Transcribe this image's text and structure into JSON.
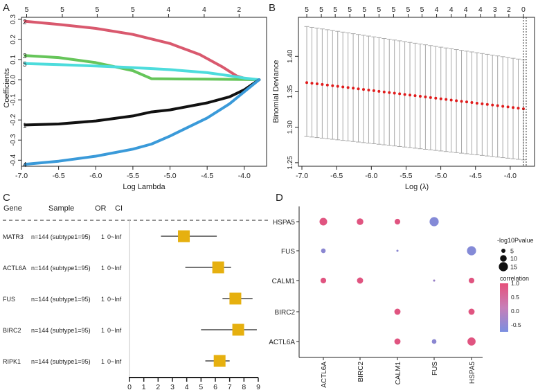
{
  "colors": {
    "red": "#d9596e",
    "green": "#66c55a",
    "cyan": "#4ddcdc",
    "black": "#111111",
    "blue": "#3a9ad9",
    "point_red": "#e01b1b",
    "errbar_gray": "#a8a8a8",
    "box_gold": "#e6b00f",
    "bubble_high": "#e6507a",
    "bubble_low": "#7b8fe0"
  },
  "chart_data": [
    {
      "panel": "A",
      "type": "line",
      "xlabel": "Log Lambda",
      "ylabel": "Coefficients",
      "xlim": [
        -7.0,
        -3.7
      ],
      "ylim": [
        -0.43,
        0.31
      ],
      "xticks": [
        -7.0,
        -6.5,
        -6.0,
        -5.5,
        -5.0,
        -4.5,
        -4.0
      ],
      "yticks": [
        0.3,
        0.2,
        0.1,
        0.0,
        -0.1,
        -0.2,
        -0.3,
        -0.4
      ],
      "top_axis": {
        "positions": [
          -6.93,
          -6.45,
          -5.98,
          -5.5,
          -5.02,
          -4.54,
          -4.07
        ],
        "labels": [
          "5",
          "5",
          "5",
          "5",
          "4",
          "4",
          "2"
        ]
      },
      "series": [
        {
          "name": "2",
          "color": "red",
          "x": [
            -6.95,
            -6.5,
            -6.0,
            -5.5,
            -5.0,
            -4.6,
            -4.3,
            -4.1,
            -3.95,
            -3.8
          ],
          "values": [
            0.29,
            0.275,
            0.255,
            0.225,
            0.18,
            0.125,
            0.065,
            0.018,
            0.002,
            0.0
          ]
        },
        {
          "name": "3",
          "color": "green",
          "x": [
            -6.95,
            -6.5,
            -6.0,
            -5.5,
            -5.25,
            -5.0,
            -4.5,
            -4.0,
            -3.8
          ],
          "values": [
            0.12,
            0.11,
            0.085,
            0.045,
            0.005,
            0.004,
            0.003,
            0.001,
            0.0
          ]
        },
        {
          "name": "5",
          "color": "cyan",
          "x": [
            -6.95,
            -6.5,
            -6.0,
            -5.5,
            -5.0,
            -4.5,
            -4.2,
            -4.0,
            -3.8
          ],
          "values": [
            0.08,
            0.075,
            0.068,
            0.06,
            0.05,
            0.035,
            0.02,
            0.008,
            0.0
          ]
        },
        {
          "name": "1",
          "color": "black",
          "x": [
            -6.95,
            -6.5,
            -6.0,
            -5.5,
            -5.25,
            -5.0,
            -4.5,
            -4.2,
            -4.0,
            -3.9,
            -3.8
          ],
          "values": [
            -0.225,
            -0.22,
            -0.205,
            -0.18,
            -0.16,
            -0.15,
            -0.115,
            -0.085,
            -0.05,
            -0.025,
            0.0
          ]
        },
        {
          "name": "4",
          "color": "blue",
          "x": [
            -6.95,
            -6.5,
            -6.0,
            -5.5,
            -5.25,
            -5.0,
            -4.5,
            -4.2,
            -4.0,
            -3.9,
            -3.8
          ],
          "values": [
            -0.42,
            -0.405,
            -0.38,
            -0.345,
            -0.32,
            -0.28,
            -0.19,
            -0.12,
            -0.06,
            -0.03,
            0.0
          ]
        }
      ]
    },
    {
      "panel": "B",
      "type": "scatter",
      "xlabel": "Log (λ)",
      "ylabel": "Binomial Deviance",
      "xlim": [
        -7.05,
        -3.65
      ],
      "ylim": [
        1.245,
        1.455
      ],
      "xticks": [
        -7.0,
        -6.5,
        -6.0,
        -5.5,
        -5.0,
        -4.5,
        -4.0
      ],
      "yticks": [
        1.25,
        1.3,
        1.35,
        1.4
      ],
      "top_axis": {
        "positions": [
          -6.93,
          -6.72,
          -6.52,
          -6.31,
          -6.1,
          -5.89,
          -5.68,
          -5.47,
          -5.27,
          -5.06,
          -4.85,
          -4.64,
          -4.43,
          -4.22,
          -4.02,
          -3.81
        ],
        "labels": [
          "5",
          "5",
          "5",
          "5",
          "5",
          "5",
          "5",
          "5",
          "5",
          "4",
          "4",
          "4",
          "4",
          "3",
          "2",
          "0"
        ]
      },
      "x_start": -6.93,
      "x_end": -3.81,
      "n_points": 43,
      "mean_start": 1.363,
      "mean_end": 1.326,
      "lower_start": 1.287,
      "lower_end": 1.254,
      "upper_start": 1.442,
      "upper_end": 1.395,
      "vlines": [
        -3.81,
        -3.77
      ]
    },
    {
      "panel": "C",
      "type": "forest",
      "headers": {
        "gene": "Gene",
        "sample": "Sample",
        "or": "OR",
        "ci": "CI"
      },
      "xlim": [
        0,
        9
      ],
      "xticks": [
        0,
        1,
        2,
        3,
        4,
        5,
        6,
        7,
        8,
        9
      ],
      "rows": [
        {
          "gene": "MATR3",
          "sample": "n=144 (subtype1=95)",
          "or": "1",
          "ci": "0~Inf",
          "estimate": 3.8,
          "lower": 2.2,
          "upper": 6.1
        },
        {
          "gene": "ACTL6A",
          "sample": "n=144 (subtype1=95)",
          "or": "1",
          "ci": "0~Inf",
          "estimate": 6.2,
          "lower": 3.9,
          "upper": 7.1
        },
        {
          "gene": "FUS",
          "sample": "n=144 (subtype1=95)",
          "or": "1",
          "ci": "0~Inf",
          "estimate": 7.4,
          "lower": 6.5,
          "upper": 8.6
        },
        {
          "gene": "BIRC2",
          "sample": "n=144 (subtype1=95)",
          "or": "1",
          "ci": "0~Inf",
          "estimate": 7.6,
          "lower": 5.0,
          "upper": 8.9
        },
        {
          "gene": "RIPK1",
          "sample": "n=144 (subtype1=95)",
          "or": "1",
          "ci": "0~Inf",
          "estimate": 6.3,
          "lower": 5.3,
          "upper": 7.0
        }
      ]
    },
    {
      "panel": "D",
      "type": "bubble",
      "x_categories": [
        "ACTL6A",
        "BIRC2",
        "CALM1",
        "FUS",
        "HSPA5"
      ],
      "y_categories": [
        "HSPA5",
        "FUS",
        "CALM1",
        "BIRC2",
        "ACTL6A"
      ],
      "points": [
        {
          "x": "ACTL6A",
          "y": "HSPA5",
          "size": 12,
          "corr": 0.9
        },
        {
          "x": "BIRC2",
          "y": "HSPA5",
          "size": 10,
          "corr": 0.9
        },
        {
          "x": "CALM1",
          "y": "HSPA5",
          "size": 8,
          "corr": 0.9
        },
        {
          "x": "FUS",
          "y": "HSPA5",
          "size": 15,
          "corr": -0.6
        },
        {
          "x": "ACTL6A",
          "y": "FUS",
          "size": 6,
          "corr": -0.5
        },
        {
          "x": "CALM1",
          "y": "FUS",
          "size": 1,
          "corr": -0.5
        },
        {
          "x": "HSPA5",
          "y": "FUS",
          "size": 15,
          "corr": -0.6
        },
        {
          "x": "ACTL6A",
          "y": "CALM1",
          "size": 8,
          "corr": 0.9
        },
        {
          "x": "BIRC2",
          "y": "CALM1",
          "size": 9,
          "corr": 0.9
        },
        {
          "x": "FUS",
          "y": "CALM1",
          "size": 1,
          "corr": -0.3
        },
        {
          "x": "HSPA5",
          "y": "CALM1",
          "size": 8,
          "corr": 0.9
        },
        {
          "x": "CALM1",
          "y": "BIRC2",
          "size": 9,
          "corr": 0.9
        },
        {
          "x": "HSPA5",
          "y": "BIRC2",
          "size": 9,
          "corr": 0.9
        },
        {
          "x": "CALM1",
          "y": "ACTL6A",
          "size": 9,
          "corr": 0.9
        },
        {
          "x": "FUS",
          "y": "ACTL6A",
          "size": 6,
          "corr": -0.5
        },
        {
          "x": "HSPA5",
          "y": "ACTL6A",
          "size": 13,
          "corr": 0.9
        }
      ],
      "legend_size": {
        "title": "-log10Pvalue",
        "values": [
          5,
          10,
          15
        ]
      },
      "legend_color": {
        "title": "correlation",
        "ticks": [
          1.0,
          0.5,
          0.0,
          -0.5
        ],
        "tick_labels": [
          "1.0",
          "0.5",
          "0.0",
          "-0.5"
        ],
        "range": [
          -0.75,
          1.0
        ]
      }
    }
  ],
  "panel_labels": [
    "A",
    "B",
    "C",
    "D"
  ]
}
